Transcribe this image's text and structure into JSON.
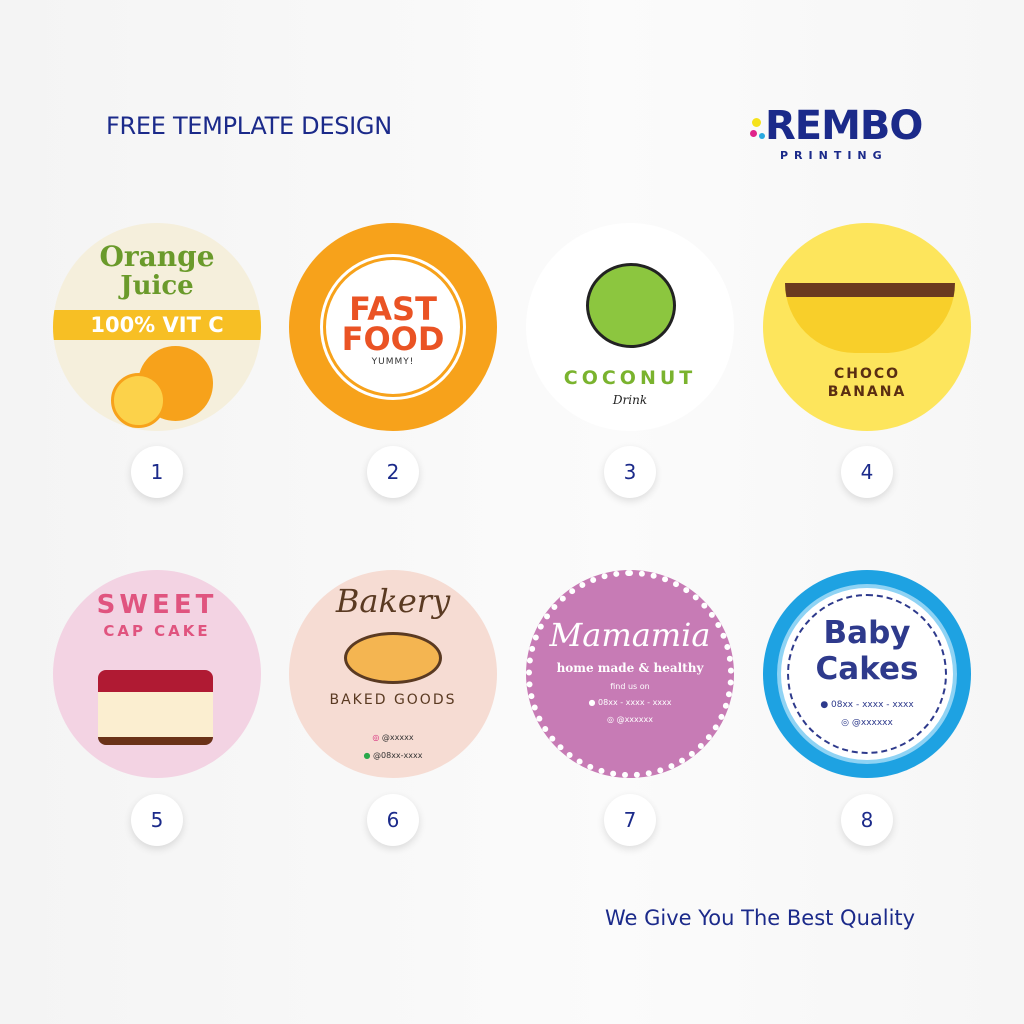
{
  "header": {
    "title": "FREE TEMPLATE DESIGN",
    "logo_text": "REMBO",
    "logo_sub": "PRINTING"
  },
  "templates": [
    {
      "number": "1",
      "line1": "Orange",
      "line2": "Juice",
      "band": "100% VIT C"
    },
    {
      "number": "2",
      "line1": "FAST",
      "line2": "FOOD",
      "sub": "YUMMY!"
    },
    {
      "number": "3",
      "line1": "COCONUT",
      "sub": "Drink"
    },
    {
      "number": "4",
      "line1": "CHOCO",
      "line2": "BANANA"
    },
    {
      "number": "5",
      "line1": "SWEET",
      "line2": "CAP CAKE"
    },
    {
      "number": "6",
      "line1": "Bakery",
      "line2": "BAKED GOODS",
      "instagram": "@xxxxx",
      "whatsapp": "@08xx-xxxx"
    },
    {
      "number": "7",
      "line1": "Mamamia",
      "line2": "home made & healthy",
      "find": "find us on",
      "whatsapp": "08xx - xxxx - xxxx",
      "instagram": "@xxxxxx"
    },
    {
      "number": "8",
      "line1": "Baby",
      "line2": "Cakes",
      "whatsapp": "08xx - xxxx - xxxx",
      "instagram": "@xxxxxx"
    }
  ],
  "footer": {
    "tagline": "We Give You The Best Quality"
  },
  "colors": {
    "brand": "#1b2a8a",
    "orange": "#f7a21b",
    "purple": "#c77bb5",
    "blue": "#1ea2e2",
    "yellow": "#fde55c"
  }
}
